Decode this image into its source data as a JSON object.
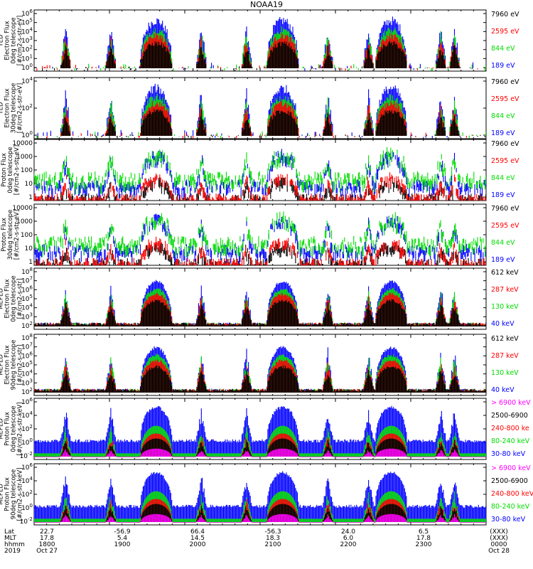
{
  "title": "NOAA19",
  "colors": {
    "black": "#000000",
    "red": "#ff0000",
    "green": "#00dd00",
    "blue": "#0000ff",
    "magenta": "#ff00ff"
  },
  "chart_data": [
    {
      "type": "line",
      "ylabel": [
        "TED",
        "Electron Flux",
        "0deg telescope",
        "[#/cm2-s-str-eV]"
      ],
      "y_scale": "log",
      "y_ticks": [
        "10^6",
        "10^5",
        "10^4",
        "10^3",
        "10^2",
        "10^1",
        "10^0"
      ],
      "legend": [
        {
          "label": "7960 eV",
          "color": "black"
        },
        {
          "label": "2595 eV",
          "color": "red"
        },
        {
          "label": "844 eV",
          "color": "green"
        },
        {
          "label": "189 eV",
          "color": "blue"
        }
      ]
    },
    {
      "type": "line",
      "ylabel": [
        "TED",
        "Electron Flux",
        "30deg telescope",
        "[#/cm2-s-str-eV]"
      ],
      "y_scale": "log",
      "y_ticks": [
        "10^4",
        "10^2",
        "10^0"
      ],
      "legend": [
        {
          "label": "7960 eV",
          "color": "black"
        },
        {
          "label": "2595 eV",
          "color": "red"
        },
        {
          "label": "844 eV",
          "color": "green"
        },
        {
          "label": "189 eV",
          "color": "blue"
        }
      ]
    },
    {
      "type": "line",
      "ylabel": [
        "Proton Flux",
        "0deg telescope",
        "[#/cm2-s-str-eV]"
      ],
      "y_scale": "log",
      "y_ticks": [
        "10000",
        "1000",
        "100",
        "10",
        "1"
      ],
      "legend": [
        {
          "label": "7960 eV",
          "color": "black"
        },
        {
          "label": "2595 eV",
          "color": "red"
        },
        {
          "label": "844 eV",
          "color": "green"
        },
        {
          "label": "189 eV",
          "color": "blue"
        }
      ]
    },
    {
      "type": "line",
      "ylabel": [
        "Proton Flux",
        "30deg telescope",
        "[#/cm2-s-str-eV]"
      ],
      "y_scale": "log",
      "y_ticks": [
        "10000",
        "1000",
        "100",
        "10",
        "1"
      ],
      "legend": [
        {
          "label": "7960 eV",
          "color": "black"
        },
        {
          "label": "2595 eV",
          "color": "red"
        },
        {
          "label": "844 eV",
          "color": "green"
        },
        {
          "label": "189 eV",
          "color": "blue"
        }
      ]
    },
    {
      "type": "line",
      "ylabel": [
        "MEPED",
        "Electron Flux",
        "0deg telescope",
        "[#/cm2-s-str]"
      ],
      "y_scale": "log",
      "y_ticks": [
        "10^8",
        "10^7",
        "10^6",
        "10^5",
        "10^4",
        "10^3",
        "10^2"
      ],
      "legend": [
        {
          "label": "612 keV",
          "color": "black"
        },
        {
          "label": "287 keV",
          "color": "red"
        },
        {
          "label": "130 keV",
          "color": "green"
        },
        {
          "label": "40 keV",
          "color": "blue"
        }
      ]
    },
    {
      "type": "line",
      "ylabel": [
        "MEPED",
        "Electron Flux",
        "90deg telescope",
        "[#/cm2-s-str]"
      ],
      "y_scale": "log",
      "y_ticks": [
        "10^8",
        "10^7",
        "10^6",
        "10^5",
        "10^4",
        "10^3",
        "10^2"
      ],
      "legend": [
        {
          "label": "612 keV",
          "color": "black"
        },
        {
          "label": "287 keV",
          "color": "red"
        },
        {
          "label": "130 keV",
          "color": "green"
        },
        {
          "label": "40 keV",
          "color": "blue"
        }
      ]
    },
    {
      "type": "line",
      "ylabel": [
        "MEPED",
        "Proton Flux",
        "0deg telescope",
        "[#/cm2-s-str-keV]"
      ],
      "y_scale": "log",
      "y_ticks": [
        "10^6",
        "10^4",
        "10^2",
        "10^0",
        "10^-2"
      ],
      "legend": [
        {
          "label": "> 6900 keV",
          "color": "magenta"
        },
        {
          "label": "2500-6900",
          "color": "black"
        },
        {
          "label": "240-800 ke",
          "color": "red"
        },
        {
          "label": "80-240 keV",
          "color": "green"
        },
        {
          "label": "30-80 keV",
          "color": "blue"
        }
      ]
    },
    {
      "type": "line",
      "ylabel": [
        "MEPED",
        "Proton Flux",
        "90deg telescope",
        "[#/cm2-s-str-keV]"
      ],
      "y_scale": "log",
      "y_ticks": [
        "10^6",
        "10^4",
        "10^2",
        "10^0",
        "10^-2"
      ],
      "legend": [
        {
          "label": "> 6900 keV",
          "color": "magenta"
        },
        {
          "label": "2500-6900",
          "color": "black"
        },
        {
          "label": "240-800 keV",
          "color": "red"
        },
        {
          "label": "80-240 keV",
          "color": "green"
        },
        {
          "label": "30-80 keV",
          "color": "blue"
        }
      ]
    }
  ],
  "x_axis": {
    "rows": [
      "Lat",
      "MLT",
      "hhmm",
      "2019"
    ],
    "columns": [
      {
        "lat": "22.7",
        "mlt": "17.8",
        "hhmm": "1800",
        "date": "Oct 27"
      },
      {
        "lat": "-56.9",
        "mlt": "5.4",
        "hhmm": "1900",
        "date": ""
      },
      {
        "lat": "66.4",
        "mlt": "14.5",
        "hhmm": "2000",
        "date": ""
      },
      {
        "lat": "-56.3",
        "mlt": "18.3",
        "hhmm": "2100",
        "date": ""
      },
      {
        "lat": "24.0",
        "mlt": "6.0",
        "hhmm": "2200",
        "date": ""
      },
      {
        "lat": "6.5",
        "mlt": "17.8",
        "hhmm": "2300",
        "date": ""
      },
      {
        "lat": "(XXX)",
        "mlt": "(XXX)",
        "hhmm": "0000",
        "date": "Oct 28"
      }
    ]
  }
}
